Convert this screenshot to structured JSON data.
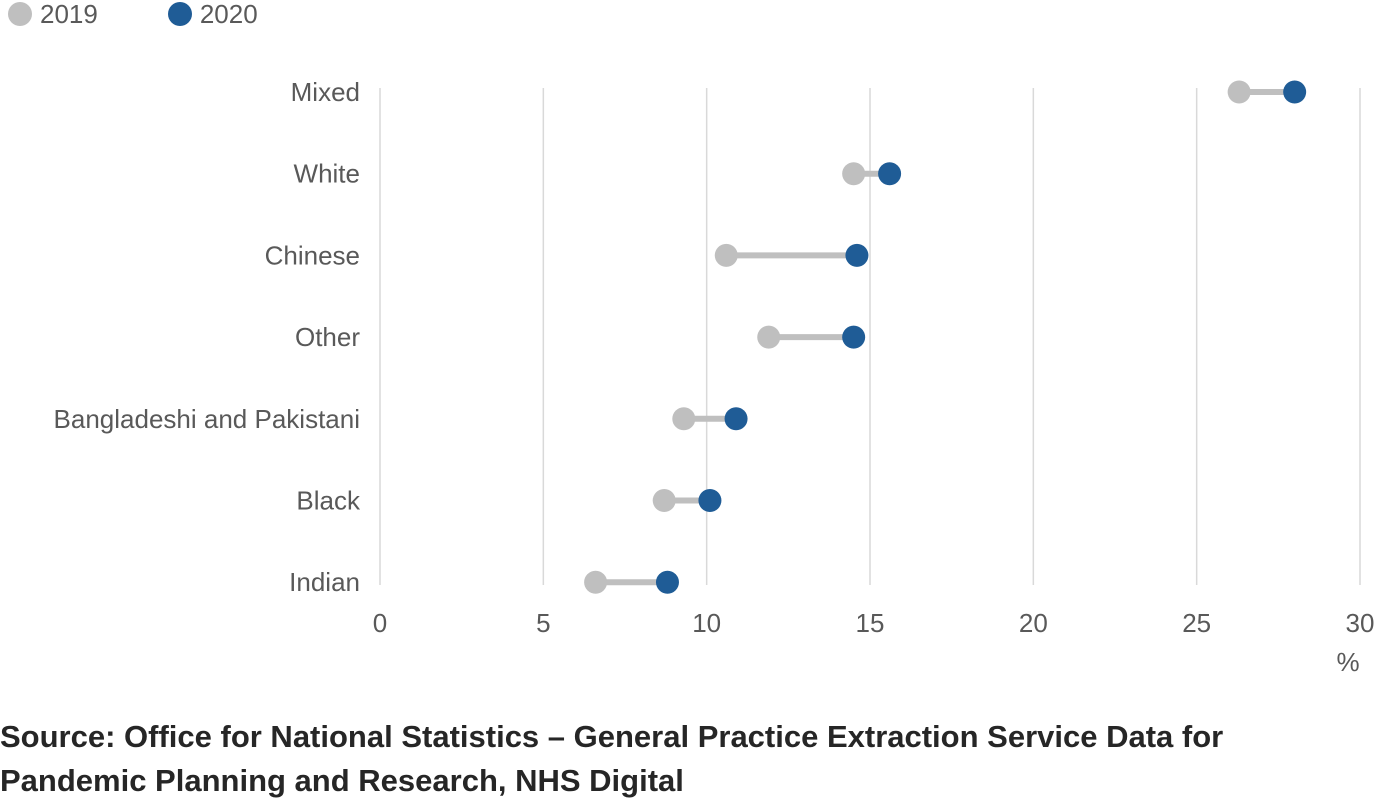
{
  "chart_data": {
    "type": "dumbbell",
    "categories": [
      "Mixed",
      "White",
      "Chinese",
      "Other",
      "Bangladeshi and Pakistani",
      "Black",
      "Indian"
    ],
    "series": [
      {
        "name": "2019",
        "values": [
          26.3,
          14.5,
          10.6,
          11.9,
          9.3,
          8.7,
          6.6
        ],
        "color": "#bfbfbf"
      },
      {
        "name": "2020",
        "values": [
          28.0,
          15.6,
          14.6,
          14.5,
          10.9,
          10.1,
          8.8
        ],
        "color": "#1f5c96"
      }
    ],
    "xlabel": "%",
    "xlim": [
      0,
      30
    ],
    "xticks": [
      0,
      5,
      10,
      15,
      20,
      25,
      30
    ],
    "grid": true,
    "legend_position": "top-left",
    "connector_color": "#bfbfbf"
  },
  "source_text": "Source: Office for National Statistics – General Practice Extraction Service Data for Pandemic Planning and Research, NHS Digital"
}
